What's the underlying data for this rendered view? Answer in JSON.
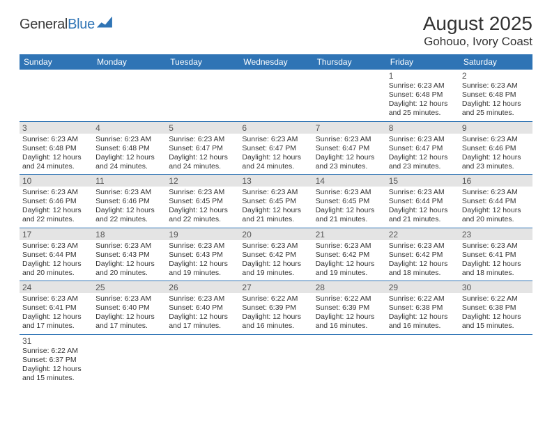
{
  "brand": {
    "name_a": "General",
    "name_b": "Blue"
  },
  "title": "August 2025",
  "location": "Gohouo, Ivory Coast",
  "colors": {
    "header_bg": "#2f74b5",
    "header_text": "#ffffff",
    "band_bg": "#e4e4e4",
    "border": "#2f74b5",
    "body_text": "#333333"
  },
  "day_headers": [
    "Sunday",
    "Monday",
    "Tuesday",
    "Wednesday",
    "Thursday",
    "Friday",
    "Saturday"
  ],
  "weeks": [
    [
      null,
      null,
      null,
      null,
      null,
      {
        "n": "1",
        "sr": "Sunrise: 6:23 AM",
        "ss": "Sunset: 6:48 PM",
        "dl": "Daylight: 12 hours and 25 minutes."
      },
      {
        "n": "2",
        "sr": "Sunrise: 6:23 AM",
        "ss": "Sunset: 6:48 PM",
        "dl": "Daylight: 12 hours and 25 minutes."
      }
    ],
    [
      {
        "n": "3",
        "sr": "Sunrise: 6:23 AM",
        "ss": "Sunset: 6:48 PM",
        "dl": "Daylight: 12 hours and 24 minutes."
      },
      {
        "n": "4",
        "sr": "Sunrise: 6:23 AM",
        "ss": "Sunset: 6:48 PM",
        "dl": "Daylight: 12 hours and 24 minutes."
      },
      {
        "n": "5",
        "sr": "Sunrise: 6:23 AM",
        "ss": "Sunset: 6:47 PM",
        "dl": "Daylight: 12 hours and 24 minutes."
      },
      {
        "n": "6",
        "sr": "Sunrise: 6:23 AM",
        "ss": "Sunset: 6:47 PM",
        "dl": "Daylight: 12 hours and 24 minutes."
      },
      {
        "n": "7",
        "sr": "Sunrise: 6:23 AM",
        "ss": "Sunset: 6:47 PM",
        "dl": "Daylight: 12 hours and 23 minutes."
      },
      {
        "n": "8",
        "sr": "Sunrise: 6:23 AM",
        "ss": "Sunset: 6:47 PM",
        "dl": "Daylight: 12 hours and 23 minutes."
      },
      {
        "n": "9",
        "sr": "Sunrise: 6:23 AM",
        "ss": "Sunset: 6:46 PM",
        "dl": "Daylight: 12 hours and 23 minutes."
      }
    ],
    [
      {
        "n": "10",
        "sr": "Sunrise: 6:23 AM",
        "ss": "Sunset: 6:46 PM",
        "dl": "Daylight: 12 hours and 22 minutes."
      },
      {
        "n": "11",
        "sr": "Sunrise: 6:23 AM",
        "ss": "Sunset: 6:46 PM",
        "dl": "Daylight: 12 hours and 22 minutes."
      },
      {
        "n": "12",
        "sr": "Sunrise: 6:23 AM",
        "ss": "Sunset: 6:45 PM",
        "dl": "Daylight: 12 hours and 22 minutes."
      },
      {
        "n": "13",
        "sr": "Sunrise: 6:23 AM",
        "ss": "Sunset: 6:45 PM",
        "dl": "Daylight: 12 hours and 21 minutes."
      },
      {
        "n": "14",
        "sr": "Sunrise: 6:23 AM",
        "ss": "Sunset: 6:45 PM",
        "dl": "Daylight: 12 hours and 21 minutes."
      },
      {
        "n": "15",
        "sr": "Sunrise: 6:23 AM",
        "ss": "Sunset: 6:44 PM",
        "dl": "Daylight: 12 hours and 21 minutes."
      },
      {
        "n": "16",
        "sr": "Sunrise: 6:23 AM",
        "ss": "Sunset: 6:44 PM",
        "dl": "Daylight: 12 hours and 20 minutes."
      }
    ],
    [
      {
        "n": "17",
        "sr": "Sunrise: 6:23 AM",
        "ss": "Sunset: 6:44 PM",
        "dl": "Daylight: 12 hours and 20 minutes."
      },
      {
        "n": "18",
        "sr": "Sunrise: 6:23 AM",
        "ss": "Sunset: 6:43 PM",
        "dl": "Daylight: 12 hours and 20 minutes."
      },
      {
        "n": "19",
        "sr": "Sunrise: 6:23 AM",
        "ss": "Sunset: 6:43 PM",
        "dl": "Daylight: 12 hours and 19 minutes."
      },
      {
        "n": "20",
        "sr": "Sunrise: 6:23 AM",
        "ss": "Sunset: 6:42 PM",
        "dl": "Daylight: 12 hours and 19 minutes."
      },
      {
        "n": "21",
        "sr": "Sunrise: 6:23 AM",
        "ss": "Sunset: 6:42 PM",
        "dl": "Daylight: 12 hours and 19 minutes."
      },
      {
        "n": "22",
        "sr": "Sunrise: 6:23 AM",
        "ss": "Sunset: 6:42 PM",
        "dl": "Daylight: 12 hours and 18 minutes."
      },
      {
        "n": "23",
        "sr": "Sunrise: 6:23 AM",
        "ss": "Sunset: 6:41 PM",
        "dl": "Daylight: 12 hours and 18 minutes."
      }
    ],
    [
      {
        "n": "24",
        "sr": "Sunrise: 6:23 AM",
        "ss": "Sunset: 6:41 PM",
        "dl": "Daylight: 12 hours and 17 minutes."
      },
      {
        "n": "25",
        "sr": "Sunrise: 6:23 AM",
        "ss": "Sunset: 6:40 PM",
        "dl": "Daylight: 12 hours and 17 minutes."
      },
      {
        "n": "26",
        "sr": "Sunrise: 6:23 AM",
        "ss": "Sunset: 6:40 PM",
        "dl": "Daylight: 12 hours and 17 minutes."
      },
      {
        "n": "27",
        "sr": "Sunrise: 6:22 AM",
        "ss": "Sunset: 6:39 PM",
        "dl": "Daylight: 12 hours and 16 minutes."
      },
      {
        "n": "28",
        "sr": "Sunrise: 6:22 AM",
        "ss": "Sunset: 6:39 PM",
        "dl": "Daylight: 12 hours and 16 minutes."
      },
      {
        "n": "29",
        "sr": "Sunrise: 6:22 AM",
        "ss": "Sunset: 6:38 PM",
        "dl": "Daylight: 12 hours and 16 minutes."
      },
      {
        "n": "30",
        "sr": "Sunrise: 6:22 AM",
        "ss": "Sunset: 6:38 PM",
        "dl": "Daylight: 12 hours and 15 minutes."
      }
    ],
    [
      {
        "n": "31",
        "sr": "Sunrise: 6:22 AM",
        "ss": "Sunset: 6:37 PM",
        "dl": "Daylight: 12 hours and 15 minutes."
      },
      null,
      null,
      null,
      null,
      null,
      null
    ]
  ]
}
